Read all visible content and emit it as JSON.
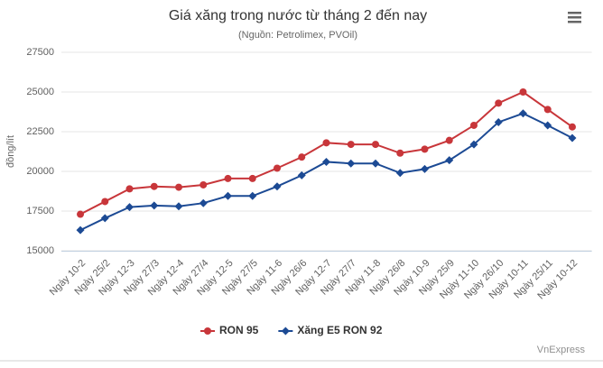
{
  "chart_data": {
    "type": "line",
    "title": "Giá xăng trong nước từ tháng 2 đến nay",
    "subtitle": "(Nguồn: Petrolimex, PVOil)",
    "y_label": "đồng/lít",
    "credit": "VnExpress",
    "categories": [
      "Ngày 10-2",
      "Ngày 25/2",
      "Ngày 12-3",
      "Ngày 27/3",
      "Ngày 12-4",
      "Ngày 27/4",
      "Ngày 12-5",
      "Ngày 27/5",
      "Ngày 11-6",
      "Ngày 26/6",
      "Ngày 12-7",
      "Ngày 27/7",
      "Ngày 11-8",
      "Ngày 26/8",
      "Ngày 10-9",
      "Ngày 25/9",
      "Ngày 11-10",
      "Ngày 26/10",
      "Ngày 10-11",
      "Ngày 25/11",
      "Ngày 10-12"
    ],
    "series": [
      {
        "name": "RON 95",
        "color": "#c8363a",
        "marker": "circle",
        "values": [
          17300,
          18100,
          18900,
          19050,
          19000,
          19150,
          19550,
          19550,
          20200,
          20900,
          21800,
          21700,
          21700,
          21150,
          21400,
          21950,
          22900,
          24300,
          25000,
          23900,
          22800
        ]
      },
      {
        "name": "Xăng E5 RON 92",
        "color": "#1c4a94",
        "marker": "diamond",
        "values": [
          16300,
          17050,
          17750,
          17850,
          17800,
          18000,
          18450,
          18450,
          19050,
          19750,
          20600,
          20500,
          20500,
          19900,
          20150,
          20700,
          21700,
          23100,
          23650,
          22900,
          22100
        ]
      }
    ],
    "ylim": [
      15000,
      27500
    ],
    "yticks": [
      15000,
      17500,
      20000,
      22500,
      25000,
      27500
    ],
    "grid": true
  }
}
